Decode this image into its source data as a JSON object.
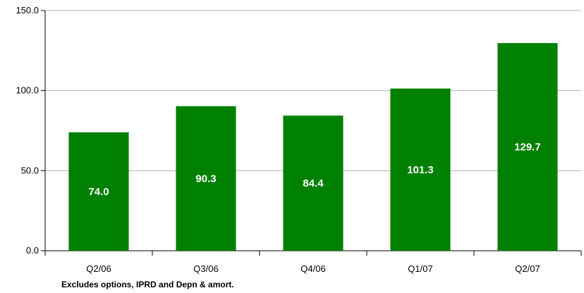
{
  "chart_data": {
    "type": "bar",
    "categories": [
      "Q2/06",
      "Q3/06",
      "Q4/06",
      "Q1/07",
      "Q2/07"
    ],
    "values": [
      74.0,
      90.3,
      84.4,
      101.3,
      129.7
    ],
    "value_labels": [
      "74.0",
      "90.3",
      "84.4",
      "101.3",
      "129.7"
    ],
    "ylim": [
      0,
      150
    ],
    "y_ticks": [
      0,
      50,
      100,
      150
    ],
    "y_tick_labels": [
      "0.0",
      "50.0",
      "100.0",
      "150.0"
    ],
    "grid": true,
    "bar_color": "#008000",
    "label_color": "#ffffff"
  },
  "footnote": "Excludes options, IPRD and Depn & amort."
}
